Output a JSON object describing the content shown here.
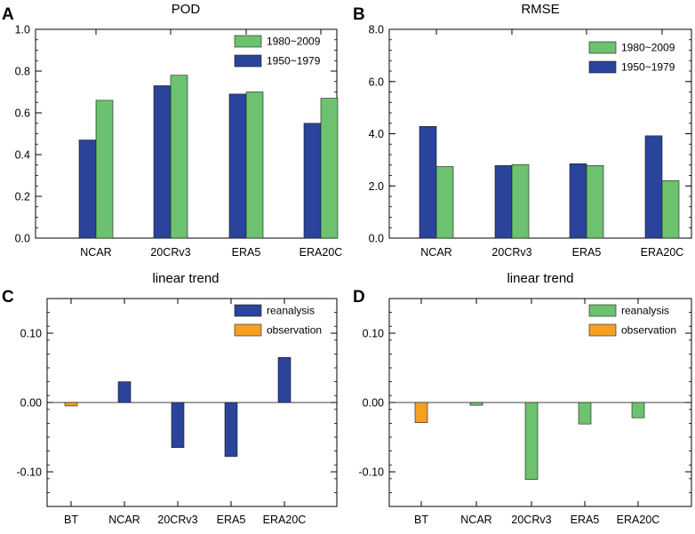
{
  "colors": {
    "green": "#6cc26f",
    "blue": "#2a449c",
    "orange": "#f5a025",
    "axis": "#000000"
  },
  "chart_data": [
    {
      "type": "bar",
      "panel_label": "A",
      "title": "POD",
      "categories": [
        "NCAR",
        "20CRv3",
        "ERA5",
        "ERA20C"
      ],
      "series": [
        {
          "name": "1950~1979",
          "color": "blue",
          "values": [
            0.47,
            0.73,
            0.69,
            0.55
          ]
        },
        {
          "name": "1980~2009",
          "color": "green",
          "values": [
            0.66,
            0.78,
            0.7,
            0.67
          ]
        }
      ],
      "legend": [
        {
          "name": "1980~2009",
          "color": "green"
        },
        {
          "name": "1950~1979",
          "color": "blue"
        }
      ],
      "ylim": [
        0,
        1.0
      ],
      "yticks": [
        0,
        0.2,
        0.4,
        0.6,
        0.8,
        1.0
      ],
      "ytick_labels": [
        "0.0",
        "0.2",
        "0.4",
        "0.6",
        "0.8",
        "1.0"
      ],
      "minor_step": 0.05,
      "baseline": 0,
      "legend_position": "top-right"
    },
    {
      "type": "bar",
      "panel_label": "B",
      "title": "RMSE",
      "categories": [
        "NCAR",
        "20CRv3",
        "ERA5",
        "ERA20C"
      ],
      "series": [
        {
          "name": "1950~1979",
          "color": "blue",
          "values": [
            4.28,
            2.78,
            2.85,
            3.92
          ]
        },
        {
          "name": "1980~2009",
          "color": "green",
          "values": [
            2.74,
            2.82,
            2.78,
            2.2
          ]
        }
      ],
      "legend": [
        {
          "name": "1980~2009",
          "color": "green"
        },
        {
          "name": "1950~1979",
          "color": "blue"
        }
      ],
      "ylim": [
        0,
        8.0
      ],
      "yticks": [
        0,
        2,
        4,
        6,
        8
      ],
      "ytick_labels": [
        "0.0",
        "2.0",
        "4.0",
        "6.0",
        "8.0"
      ],
      "minor_step": 0.4,
      "baseline": 0,
      "legend_position": "top-right"
    },
    {
      "type": "bar",
      "panel_label": "C",
      "title": "linear trend",
      "categories": [
        "BT",
        "NCAR",
        "20CRv3",
        "ERA5",
        "ERA20C"
      ],
      "values": [
        -0.005,
        0.03,
        -0.065,
        -0.078,
        0.065
      ],
      "bar_colors": [
        "orange",
        "blue",
        "blue",
        "blue",
        "blue"
      ],
      "legend": [
        {
          "name": "reanalysis",
          "color": "blue"
        },
        {
          "name": "observation",
          "color": "orange"
        }
      ],
      "ylim": [
        -0.15,
        0.15
      ],
      "yticks": [
        -0.1,
        0.0,
        0.1
      ],
      "ytick_labels": [
        "-0.10",
        "0.00",
        "0.10"
      ],
      "minor_step": 0.02,
      "baseline": 0,
      "zero_line": true,
      "legend_position": "top-right"
    },
    {
      "type": "bar",
      "panel_label": "D",
      "title": "linear trend",
      "categories": [
        "BT",
        "NCAR",
        "20CRv3",
        "ERA5",
        "ERA20C"
      ],
      "values": [
        -0.029,
        -0.004,
        -0.111,
        -0.031,
        -0.022
      ],
      "bar_colors": [
        "orange",
        "green",
        "green",
        "green",
        "green"
      ],
      "legend": [
        {
          "name": "reanalysis",
          "color": "green"
        },
        {
          "name": "observation",
          "color": "orange"
        }
      ],
      "ylim": [
        -0.15,
        0.15
      ],
      "yticks": [
        -0.1,
        0.0,
        0.1
      ],
      "ytick_labels": [
        "-0.10",
        "0.00",
        "0.10"
      ],
      "minor_step": 0.02,
      "baseline": 0,
      "zero_line": true,
      "legend_position": "top-right"
    }
  ]
}
